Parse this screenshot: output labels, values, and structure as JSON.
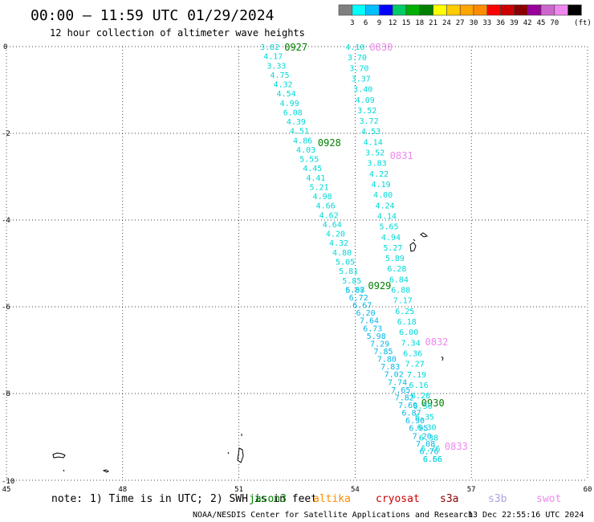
{
  "header": {
    "title": "00:00 – 11:59 UTC 01/29/2024",
    "subtitle": "12 hour collection of altimeter wave heights"
  },
  "legend": {
    "colors": [
      "#808080",
      "#00ffff",
      "#00bfff",
      "#0000ff",
      "#00cc66",
      "#00b000",
      "#008000",
      "#ffff00",
      "#ffcc00",
      "#ffa500",
      "#ff8c00",
      "#ff0000",
      "#cc0000",
      "#8b0000",
      "#990099",
      "#cc66cc",
      "#ee88ee",
      "#000000"
    ],
    "labels": [
      "3",
      "6",
      "9",
      "12",
      "15",
      "18",
      "21",
      "24",
      "27",
      "30",
      "33",
      "36",
      "39",
      "42",
      "45",
      "70"
    ],
    "unit": "(ft)"
  },
  "footer": {
    "note_label": "note:",
    "note_1": "1) Time is in UTC;",
    "note_2": "2) SWH is in feet",
    "sats": [
      {
        "name": "jason3",
        "color": "#008000"
      },
      {
        "name": "altika",
        "color": "#ff8c00"
      },
      {
        "name": "cryosat",
        "color": "#cc0000"
      },
      {
        "name": "s3a",
        "color": "#8b0000"
      },
      {
        "name": "s3b",
        "color": "#b0a0e0"
      },
      {
        "name": "swot",
        "color": "#ee88ee"
      }
    ],
    "credit": "NOAA/NESDIS Center for Satellite Applications and Research",
    "timestamp": "13 Dec 22:55:16 UTC 2024"
  },
  "chart_data": {
    "type": "scatter",
    "xlim": [
      45,
      60
    ],
    "ylim": [
      -10,
      0
    ],
    "x_ticks": [
      45,
      48,
      51,
      54,
      57,
      60
    ],
    "y_ticks": [
      0,
      -2,
      -4,
      -6,
      -8,
      -10
    ],
    "grid": true,
    "tracks": [
      {
        "name": "jason3",
        "value_color": "#00d8d8",
        "label_color": "#008000",
        "start": [
          51.8,
          0.0
        ],
        "end": [
          54.0,
          -5.6
        ],
        "values": [
          "3.82",
          "4.17",
          "3.33",
          "4.75",
          "4.32",
          "4.54",
          "4.99",
          "6.08",
          "4.39",
          "4.51",
          "4.86",
          "4.03",
          "5.55",
          "4.45",
          "4.41",
          "5.21",
          "4.98",
          "4.66",
          "4.62",
          "4.64",
          "4.20",
          "4.32",
          "4.80",
          "5.05",
          "5.81",
          "5.85",
          "6.08"
        ],
        "times": [
          {
            "label": "0927",
            "lat": 0.0
          },
          {
            "label": "0928",
            "lat": -2.2
          },
          {
            "label": "0929",
            "lat": -5.5
          }
        ]
      },
      {
        "name": "jason3",
        "value_color": "#00b8e8",
        "label_color": "#008000",
        "start": [
          54.0,
          -5.6
        ],
        "end": [
          56.0,
          -9.5
        ],
        "values": [
          "5.57",
          "6.72",
          "6.67",
          "6.20",
          "7.64",
          "6.73",
          "5.98",
          "7.29",
          "7.85",
          "7.80",
          "7.83",
          "7.02",
          "7.74",
          "7.65",
          "7.82",
          "7.69",
          "6.87",
          "6.90",
          "6.95",
          "7.20",
          "7.08",
          "6.76",
          "6.66"
        ],
        "times": [
          {
            "label": "0930",
            "lat": -8.2
          }
        ]
      },
      {
        "name": "swot",
        "value_color": "#00d8d8",
        "label_color": "#ee88ee",
        "start": [
          54.0,
          0.0
        ],
        "end": [
          56.0,
          -9.5
        ],
        "values": [
          "4.10",
          "3.70",
          "3.70",
          "3.37",
          "3.40",
          "4.09",
          "3.52",
          "3.72",
          "4.53",
          "4.14",
          "3.52",
          "3.83",
          "4.22",
          "4.19",
          "4.00",
          "4.24",
          "4.14",
          "5.65",
          "4.94",
          "5.27",
          "5.89",
          "6.28",
          "6.84",
          "6.88",
          "7.17",
          "6.25",
          "6.18",
          "6.00",
          "7.34",
          "6.36",
          "7.27",
          "7.19",
          "6.16",
          "6.28",
          "6.50",
          "6.35",
          "6.30",
          "6.38",
          "6.76",
          "6.56"
        ],
        "times": [
          {
            "label": "0830",
            "lat": 0.0
          },
          {
            "label": "0831",
            "lat": -2.5
          },
          {
            "label": "0832",
            "lat": -6.8
          },
          {
            "label": "0833",
            "lat": -9.2
          }
        ]
      }
    ]
  }
}
